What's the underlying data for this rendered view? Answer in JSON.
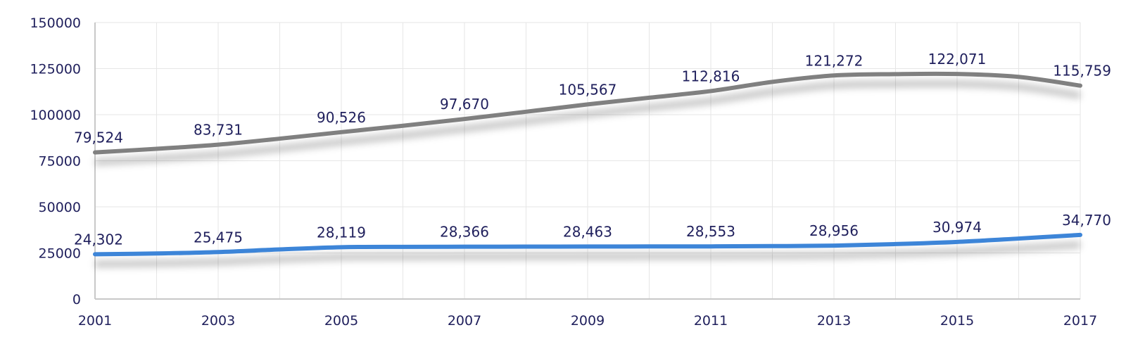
{
  "chart_data": {
    "type": "line",
    "title": "",
    "xlabel": "",
    "ylabel": "",
    "x": [
      2001,
      2002,
      2003,
      2004,
      2005,
      2006,
      2007,
      2008,
      2009,
      2010,
      2011,
      2012,
      2013,
      2014,
      2015,
      2016,
      2017
    ],
    "x_tick_labels": [
      "2001",
      "2003",
      "2005",
      "2007",
      "2009",
      "2011",
      "2013",
      "2015",
      "2017"
    ],
    "y_tick_labels": [
      "0",
      "25000",
      "50000",
      "75000",
      "100000",
      "125000",
      "150000"
    ],
    "ylim": [
      0,
      150000
    ],
    "xlim": [
      2001,
      2017
    ],
    "grid": true,
    "legend": "none",
    "series": [
      {
        "color": "#808080",
        "values": [
          79524,
          81500,
          83731,
          87000,
          90526,
          94000,
          97670,
          101600,
          105567,
          109200,
          112816,
          117800,
          121272,
          122000,
          122071,
          120500,
          115759
        ],
        "labeled_points": [
          {
            "x": 2001,
            "label": "79,524"
          },
          {
            "x": 2003,
            "label": "83,731"
          },
          {
            "x": 2005,
            "label": "90,526"
          },
          {
            "x": 2007,
            "label": "97,670"
          },
          {
            "x": 2009,
            "label": "105,567"
          },
          {
            "x": 2011,
            "label": "112,816"
          },
          {
            "x": 2013,
            "label": "121,272"
          },
          {
            "x": 2015,
            "label": "122,071"
          },
          {
            "x": 2017,
            "label": "115,759"
          }
        ]
      },
      {
        "color": "#3d85d8",
        "values": [
          24302,
          24700,
          25475,
          26900,
          28119,
          28300,
          28366,
          28420,
          28463,
          28510,
          28553,
          28700,
          28956,
          29800,
          30974,
          32800,
          34770
        ],
        "labeled_points": [
          {
            "x": 2001,
            "label": "24,302"
          },
          {
            "x": 2003,
            "label": "25,475"
          },
          {
            "x": 2005,
            "label": "28,119"
          },
          {
            "x": 2007,
            "label": "28,366"
          },
          {
            "x": 2009,
            "label": "28,463"
          },
          {
            "x": 2011,
            "label": "28,553"
          },
          {
            "x": 2013,
            "label": "28,956"
          },
          {
            "x": 2015,
            "label": "30,974"
          },
          {
            "x": 2017,
            "label": "34,770"
          }
        ]
      }
    ]
  }
}
